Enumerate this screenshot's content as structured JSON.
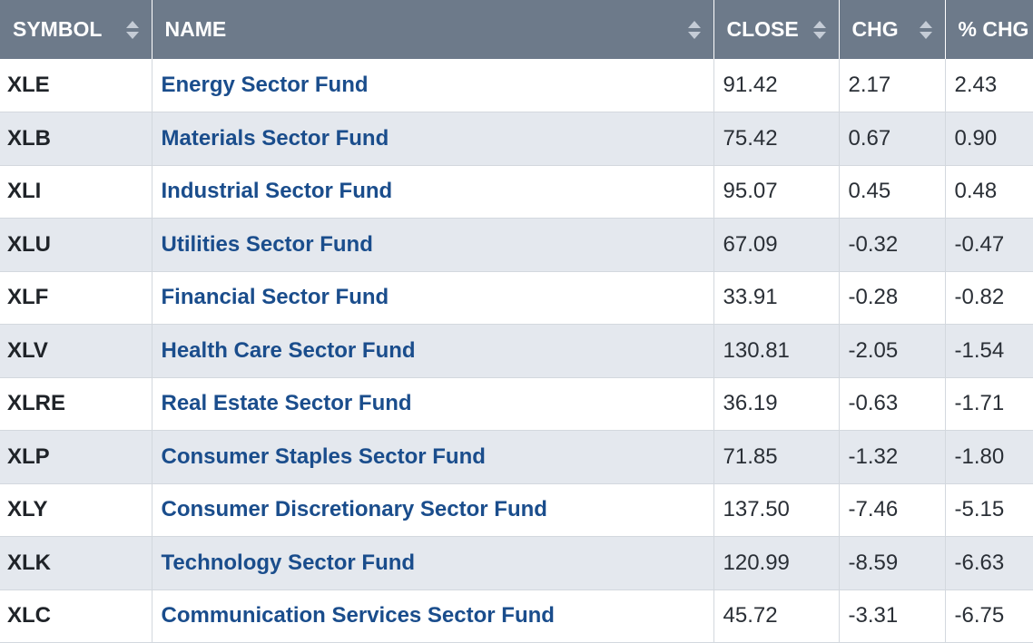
{
  "table": {
    "headers": [
      {
        "key": "symbol",
        "label": "SYMBOL"
      },
      {
        "key": "name",
        "label": "NAME"
      },
      {
        "key": "close",
        "label": "CLOSE"
      },
      {
        "key": "chg",
        "label": "CHG"
      },
      {
        "key": "pct_chg",
        "label": "% CHG"
      }
    ],
    "rows": [
      {
        "symbol": "XLE",
        "name": "Energy Sector Fund",
        "close": "91.42",
        "chg": "2.17",
        "pct_chg": "2.43"
      },
      {
        "symbol": "XLB",
        "name": "Materials Sector Fund",
        "close": "75.42",
        "chg": "0.67",
        "pct_chg": "0.90"
      },
      {
        "symbol": "XLI",
        "name": "Industrial Sector Fund",
        "close": "95.07",
        "chg": "0.45",
        "pct_chg": "0.48"
      },
      {
        "symbol": "XLU",
        "name": "Utilities Sector Fund",
        "close": "67.09",
        "chg": "-0.32",
        "pct_chg": "-0.47"
      },
      {
        "symbol": "XLF",
        "name": "Financial Sector Fund",
        "close": "33.91",
        "chg": "-0.28",
        "pct_chg": "-0.82"
      },
      {
        "symbol": "XLV",
        "name": "Health Care Sector Fund",
        "close": "130.81",
        "chg": "-2.05",
        "pct_chg": "-1.54"
      },
      {
        "symbol": "XLRE",
        "name": "Real Estate Sector Fund",
        "close": "36.19",
        "chg": "-0.63",
        "pct_chg": "-1.71"
      },
      {
        "symbol": "XLP",
        "name": "Consumer Staples Sector Fund",
        "close": "71.85",
        "chg": "-1.32",
        "pct_chg": "-1.80"
      },
      {
        "symbol": "XLY",
        "name": "Consumer Discretionary Sector Fund",
        "close": "137.50",
        "chg": "-7.46",
        "pct_chg": "-5.15"
      },
      {
        "symbol": "XLK",
        "name": "Technology Sector Fund",
        "close": "120.99",
        "chg": "-8.59",
        "pct_chg": "-6.63"
      },
      {
        "symbol": "XLC",
        "name": "Communication Services Sector Fund",
        "close": "45.72",
        "chg": "-3.31",
        "pct_chg": "-6.75"
      }
    ]
  }
}
